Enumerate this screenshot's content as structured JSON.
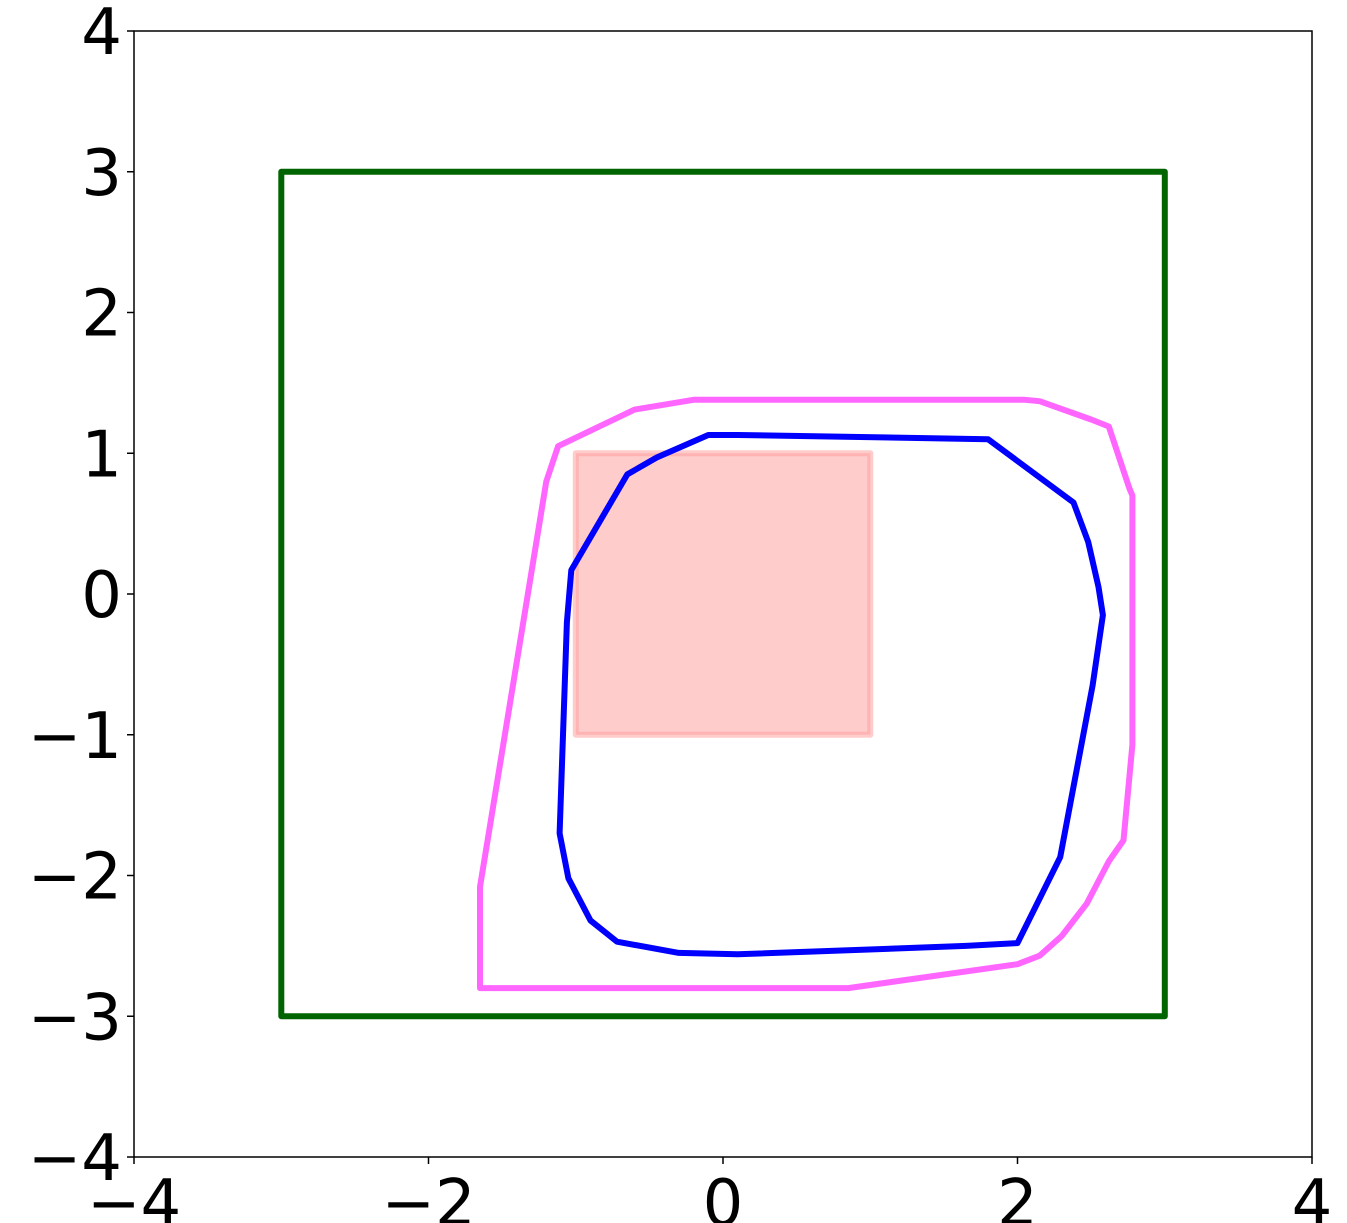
{
  "chart_data": {
    "type": "line",
    "title": "",
    "xlabel": "",
    "ylabel": "",
    "xlim": [
      -4,
      4
    ],
    "ylim": [
      -4,
      4
    ],
    "grid": false,
    "xticks": [
      -4,
      -2,
      0,
      2,
      4
    ],
    "yticks": [
      -4,
      -3,
      -2,
      -1,
      0,
      1,
      2,
      3,
      4
    ],
    "xtick_labels": [
      "−4",
      "−2",
      "0",
      "2",
      "4"
    ],
    "ytick_labels": [
      "−4",
      "−3",
      "−2",
      "−1",
      "0",
      "1",
      "2",
      "3",
      "4"
    ],
    "series": [
      {
        "kind": "filled-rectangle",
        "color": "#ff9999",
        "fill_opacity": 0.5,
        "points": [
          [
            -1,
            -1
          ],
          [
            1,
            -1
          ],
          [
            1,
            1
          ],
          [
            -1,
            1
          ],
          [
            -1,
            -1
          ]
        ]
      },
      {
        "kind": "outline",
        "color": "#006400",
        "points": [
          [
            -3,
            -3
          ],
          [
            3,
            -3
          ],
          [
            3,
            3
          ],
          [
            -3,
            3
          ],
          [
            -3,
            -3
          ]
        ]
      },
      {
        "kind": "outline",
        "color": "#ff66ff",
        "points": [
          [
            -1.65,
            -2.8
          ],
          [
            0.85,
            -2.8
          ],
          [
            2.0,
            -2.63
          ],
          [
            2.15,
            -2.57
          ],
          [
            2.3,
            -2.43
          ],
          [
            2.47,
            -2.2
          ],
          [
            2.62,
            -1.9
          ],
          [
            2.72,
            -1.75
          ],
          [
            2.78,
            -1.07
          ],
          [
            2.78,
            0.7
          ],
          [
            2.76,
            0.75
          ],
          [
            2.62,
            1.19
          ],
          [
            2.5,
            1.24
          ],
          [
            2.15,
            1.37
          ],
          [
            2.05,
            1.38
          ],
          [
            -0.2,
            1.38
          ],
          [
            -0.6,
            1.31
          ],
          [
            -1.12,
            1.05
          ],
          [
            -1.2,
            0.8
          ],
          [
            -1.65,
            -2.08
          ],
          [
            -1.65,
            -2.8
          ]
        ]
      },
      {
        "kind": "outline",
        "color": "#0000ff",
        "points": [
          [
            -0.72,
            -2.47
          ],
          [
            -0.3,
            -2.55
          ],
          [
            0.1,
            -2.56
          ],
          [
            1.65,
            -2.5
          ],
          [
            2.0,
            -2.48
          ],
          [
            2.29,
            -1.87
          ],
          [
            2.51,
            -0.65
          ],
          [
            2.58,
            -0.15
          ],
          [
            2.55,
            0.05
          ],
          [
            2.48,
            0.37
          ],
          [
            2.38,
            0.65
          ],
          [
            1.8,
            1.1
          ],
          [
            0.1,
            1.13
          ],
          [
            -0.1,
            1.13
          ],
          [
            -0.45,
            0.97
          ],
          [
            -0.65,
            0.85
          ],
          [
            -1.03,
            0.17
          ],
          [
            -1.06,
            -0.2
          ],
          [
            -1.11,
            -1.7
          ],
          [
            -1.05,
            -2.02
          ],
          [
            -0.9,
            -2.32
          ],
          [
            -0.72,
            -2.47
          ]
        ]
      }
    ]
  }
}
